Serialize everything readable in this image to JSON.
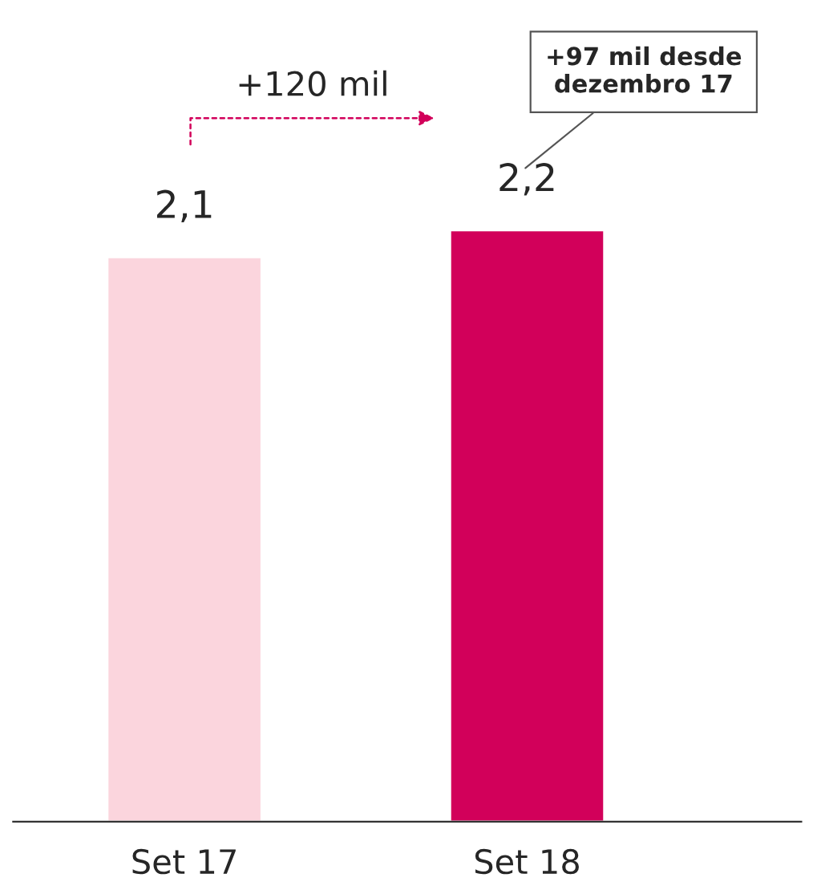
{
  "chart_data": {
    "type": "bar",
    "categories": [
      "Set 17",
      "Set 18"
    ],
    "values": [
      2.1,
      2.2
    ],
    "colors": [
      "#fbd5dd",
      "#d2005a"
    ],
    "value_labels": [
      "2,1",
      "2,2"
    ],
    "tick_labels": "x",
    "grid": false,
    "annotations": [
      "+120 mil",
      "+97 mil desde\ndezembro 17"
    ]
  }
}
